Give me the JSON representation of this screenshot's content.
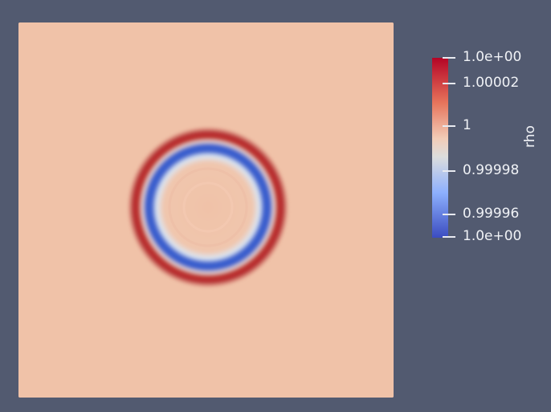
{
  "view": {
    "background_color": "#525a70",
    "field_base_color": "#f0c2a8",
    "ring_outer_color": "#b4282c",
    "ring_inner_color": "#3a5fcd",
    "ring_highlight_color": "#dbe6f2"
  },
  "colorbar": {
    "title": "rho",
    "colormap": "cool-to-warm",
    "ticks": [
      {
        "label": "1.0e+00"
      },
      {
        "label": "1.00002"
      },
      {
        "label": "1"
      },
      {
        "label": "0.99998"
      },
      {
        "label": "0.99996"
      },
      {
        "label": "1.0e+00"
      }
    ]
  }
}
